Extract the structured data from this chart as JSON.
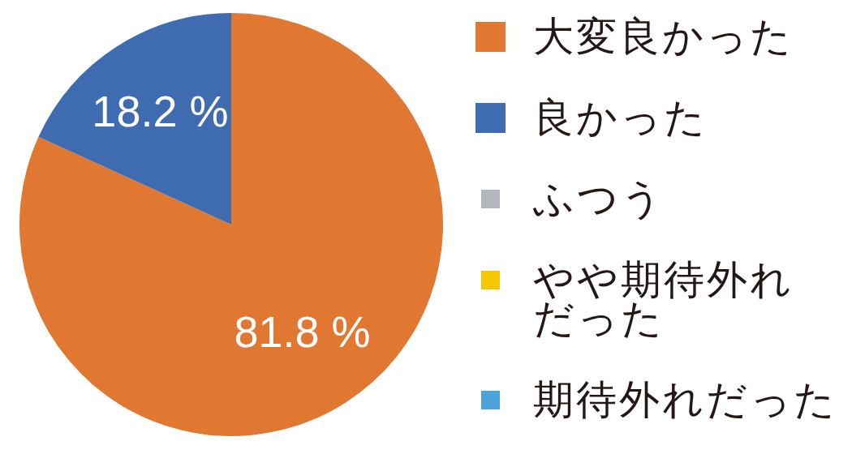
{
  "chart_data": {
    "type": "pie",
    "categories": [
      "大変良かった",
      "良かった",
      "ふつう",
      "やや期待外れだった",
      "期待外れだった"
    ],
    "values": [
      81.8,
      18.2,
      0,
      0,
      0
    ],
    "colors": [
      "#e07832",
      "#3f6bb1",
      "#b3b6bc",
      "#f7c800",
      "#4fa3dc"
    ],
    "value_labels": [
      "81.8 %",
      "18.2 %",
      null,
      null,
      null
    ],
    "legend": "right"
  }
}
